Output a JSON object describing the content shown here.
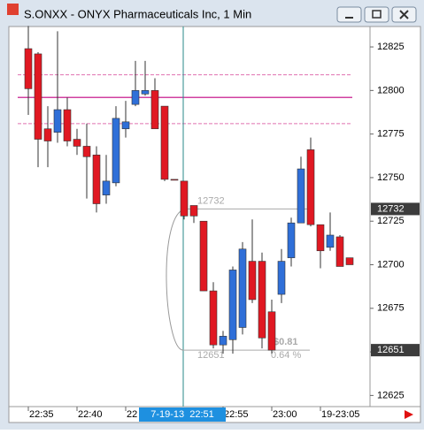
{
  "chart_data": {
    "type": "candlestick",
    "title": "S.ONXX - ONYX Pharmaceuticals Inc, 1 Min",
    "categories": [
      "22:35",
      null,
      null,
      null,
      null,
      "22:40",
      null,
      null,
      null,
      null,
      "22",
      null,
      null,
      null,
      null,
      null,
      null,
      null,
      null,
      null,
      "22:55",
      null,
      null,
      null,
      null,
      "23:00",
      null,
      null,
      null,
      null,
      "19-23:05",
      null,
      null,
      null
    ],
    "crosshair_label": "7-19-13  22:51",
    "crosshair_index": 16,
    "up_color": "#2f6fd8",
    "down_color": "#e01822",
    "open": [
      128.24,
      128.21,
      127.78,
      127.76,
      127.89,
      127.72,
      127.68,
      127.63,
      127.4,
      127.47,
      127.78,
      127.92,
      127.98,
      128.0,
      127.91,
      127.49,
      127.48,
      127.34,
      127.25,
      126.85,
      126.54,
      126.57,
      126.64,
      127.02,
      127.02,
      126.73,
      126.83,
      127.04,
      127.24,
      127.66,
      127.23,
      127.1,
      127.16,
      127.04
    ],
    "high": [
      128.37,
      128.22,
      127.91,
      128.34,
      127.96,
      127.78,
      127.81,
      127.68,
      127.63,
      127.91,
      127.94,
      128.17,
      128.17,
      128.07,
      127.91,
      127.49,
      127.48,
      127.34,
      127.25,
      126.9,
      126.62,
      126.99,
      127.13,
      127.26,
      127.07,
      126.8,
      127.09,
      127.27,
      127.62,
      127.73,
      127.23,
      127.3,
      127.17,
      127.04
    ],
    "low": [
      127.86,
      127.56,
      127.56,
      127.7,
      127.68,
      127.63,
      127.38,
      127.3,
      127.35,
      127.45,
      127.73,
      127.91,
      127.97,
      127.78,
      127.48,
      127.49,
      127.26,
      127.24,
      126.85,
      126.52,
      126.49,
      126.49,
      126.6,
      126.78,
      126.52,
      126.49,
      126.78,
      126.99,
      127.24,
      127.22,
      126.98,
      127.08,
      126.99,
      127.0
    ],
    "close": [
      128.01,
      127.72,
      127.71,
      127.89,
      127.71,
      127.68,
      127.62,
      127.35,
      127.48,
      127.84,
      127.82,
      128.0,
      128.0,
      127.78,
      127.49,
      127.49,
      127.28,
      127.28,
      126.85,
      126.54,
      126.59,
      126.97,
      127.09,
      126.8,
      126.58,
      126.51,
      127.02,
      127.24,
      127.55,
      127.23,
      127.08,
      127.17,
      126.99,
      127.0
    ],
    "ylim": [
      126.186,
      128.367
    ],
    "yticks": [
      {
        "value": 126.25,
        "label": "12625"
      },
      {
        "value": 126.5,
        "label": "12650"
      },
      {
        "value": 126.75,
        "label": "12675"
      },
      {
        "value": 127,
        "label": "12700"
      },
      {
        "value": 127.25,
        "label": "12725"
      },
      {
        "value": 127.5,
        "label": "12750"
      },
      {
        "value": 127.75,
        "label": "12775"
      },
      {
        "value": 128,
        "label": "12800"
      },
      {
        "value": 128.25,
        "label": "12825"
      }
    ],
    "price_markers": [
      {
        "value": 127.32,
        "label": "12732"
      },
      {
        "value": 126.51,
        "label": "12651"
      }
    ],
    "level_lines": [
      {
        "value": 128.09,
        "style": "dashed",
        "color": "#e070b0"
      },
      {
        "value": 127.96,
        "style": "solid",
        "color": "#d040a0"
      },
      {
        "value": 127.81,
        "style": "dashed",
        "color": "#e070b0"
      }
    ],
    "measure": {
      "start": {
        "value": 127.32,
        "label": "12732"
      },
      "end": {
        "value": 126.51,
        "label": "12651"
      },
      "change": "$0.81",
      "percent": "0.64 %"
    }
  }
}
